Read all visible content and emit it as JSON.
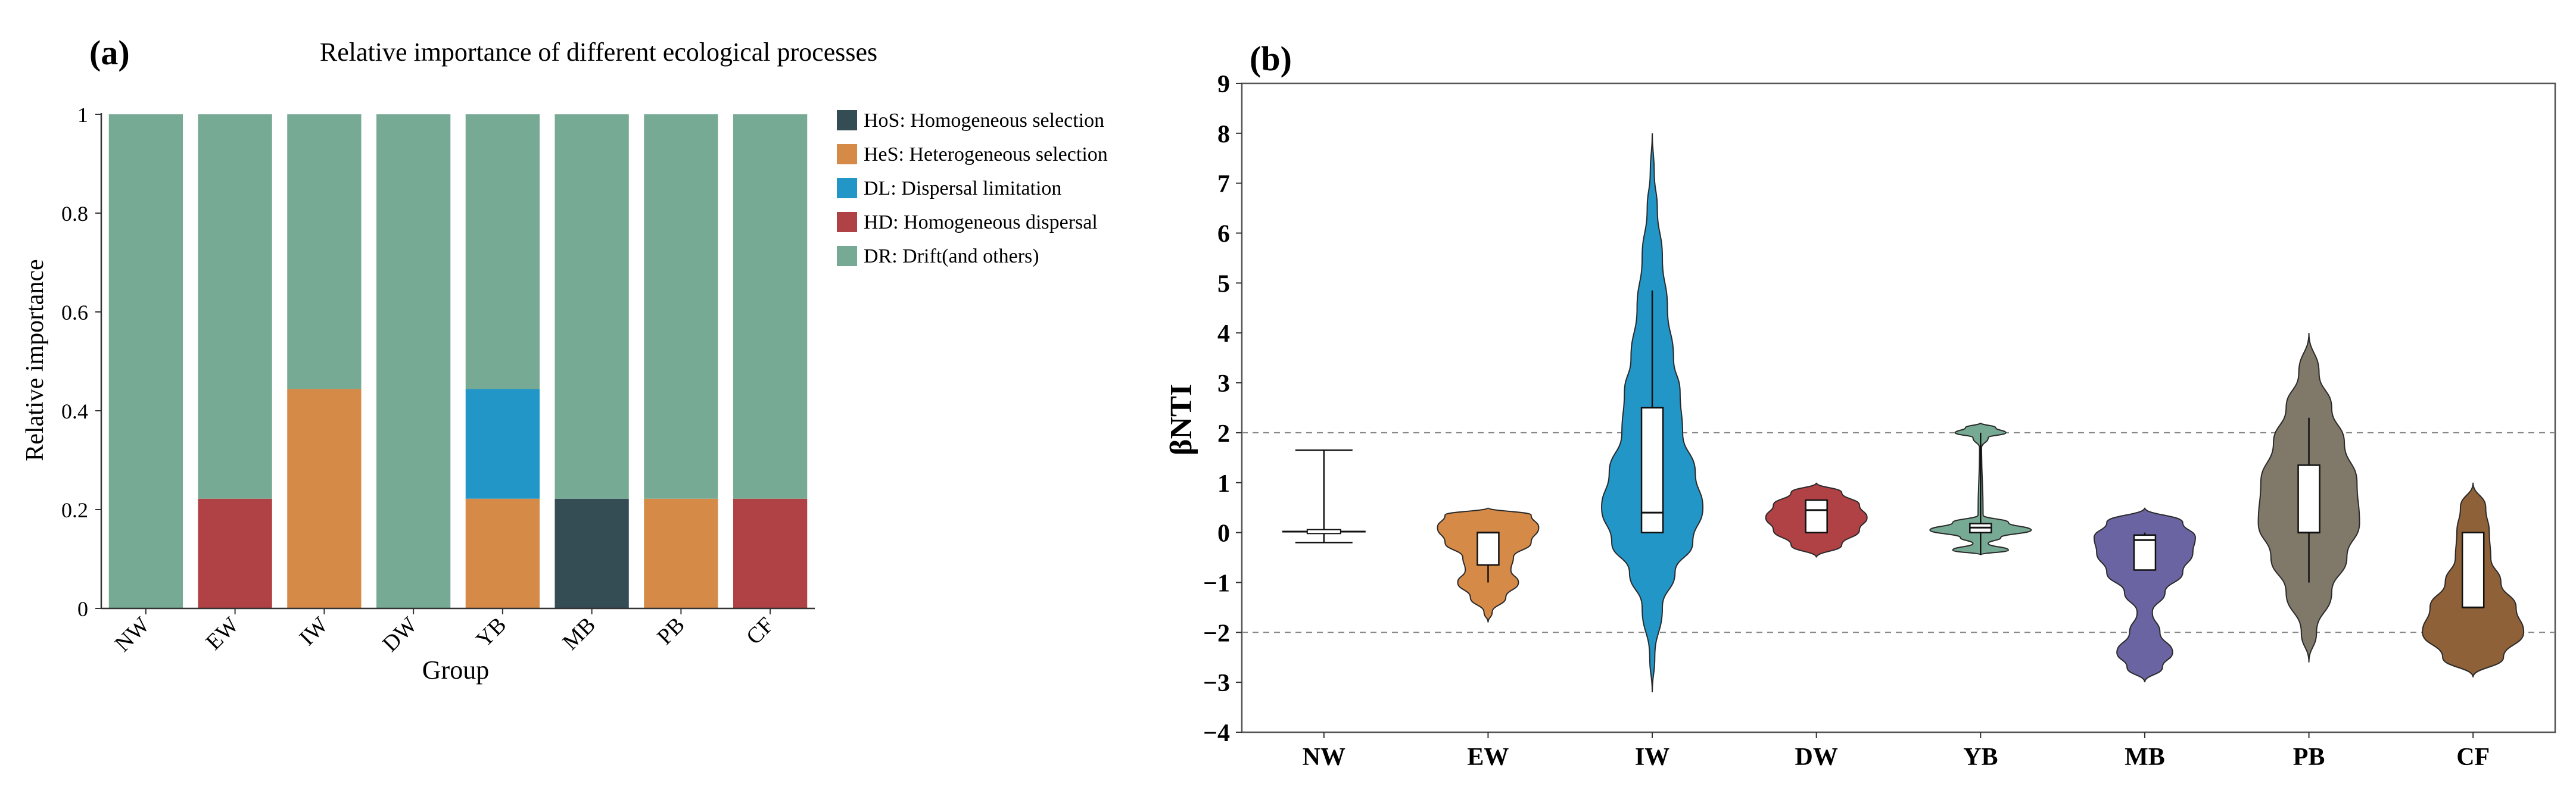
{
  "panel_a": {
    "label": "(a)",
    "chart_data": {
      "type": "bar",
      "stacked": true,
      "title": "Relative importance of different ecological processes",
      "xlabel": "Group",
      "ylabel": "Relative importance",
      "ylim": [
        0,
        1
      ],
      "yticks": [
        0,
        0.2,
        0.4,
        0.6,
        0.8,
        1
      ],
      "ytick_labels": [
        "0",
        "0.2",
        "0.4",
        "0.6",
        "0.8",
        "1"
      ],
      "categories": [
        "NW",
        "EW",
        "IW",
        "DW",
        "YB",
        "MB",
        "PB",
        "CF"
      ],
      "legend_position": "right",
      "series": [
        {
          "key": "HoS",
          "name": "HoS: Homogeneous selection",
          "color": "#344d55",
          "values": [
            0,
            0,
            0,
            0,
            0,
            0.222,
            0,
            0
          ]
        },
        {
          "key": "HeS",
          "name": "HeS: Heterogeneous selection",
          "color": "#d68a48",
          "values": [
            0,
            0,
            0.444,
            0,
            0.222,
            0,
            0.222,
            0
          ]
        },
        {
          "key": "DL",
          "name": "DL: Dispersal limitation",
          "color": "#2396c8",
          "values": [
            0,
            0,
            0,
            0,
            0.222,
            0,
            0,
            0
          ]
        },
        {
          "key": "HD",
          "name": "HD: Homogeneous dispersal",
          "color": "#b04145",
          "values": [
            0,
            0.222,
            0,
            0,
            0,
            0,
            0,
            0.222
          ]
        },
        {
          "key": "DR",
          "name": "DR: Drift(and others)",
          "color": "#77aa94",
          "values": [
            1,
            0.778,
            0.556,
            1,
            0.556,
            0.778,
            0.778,
            0.778
          ]
        }
      ],
      "stack_order": [
        "HoS",
        "HD",
        "HeS",
        "DL",
        "DR"
      ]
    }
  },
  "panel_b": {
    "label": "(b)",
    "chart_data": {
      "type": "violin",
      "title": "",
      "xlabel": "",
      "ylabel": "βNTI",
      "ylim": [
        -4,
        9
      ],
      "yticks": [
        -4,
        -3,
        -2,
        -1,
        0,
        1,
        2,
        3,
        4,
        5,
        6,
        7,
        8,
        9
      ],
      "ytick_labels": [
        "−4",
        "−3",
        "−2",
        "−1",
        "0",
        "1",
        "2",
        "3",
        "4",
        "5",
        "6",
        "7",
        "8",
        "9"
      ],
      "reference_lines": [
        2,
        -2
      ],
      "categories": [
        "NW",
        "EW",
        "IW",
        "DW",
        "YB",
        "MB",
        "PB",
        "CF"
      ],
      "groups": [
        {
          "name": "NW",
          "color": "#ffffff",
          "kind": "errorbar",
          "min": -0.2,
          "max": 1.65,
          "median": 0.02,
          "box": [
            -0.02,
            0.06
          ],
          "whisker": [
            -0.2,
            1.65
          ]
        },
        {
          "name": "EW",
          "color": "#d68a48",
          "kind": "violin",
          "min": -1.8,
          "max": 0.5,
          "box": [
            -0.65,
            0.0
          ],
          "median": 0.0,
          "whisker": [
            -1.0,
            0.0
          ],
          "density": [
            [
              -1.8,
              0.0
            ],
            [
              -1.6,
              0.08
            ],
            [
              -1.3,
              0.35
            ],
            [
              -1.0,
              0.6
            ],
            [
              -0.75,
              0.45
            ],
            [
              -0.5,
              0.5
            ],
            [
              -0.2,
              0.85
            ],
            [
              0.1,
              1.0
            ],
            [
              0.35,
              0.85
            ],
            [
              0.5,
              0.0
            ]
          ]
        },
        {
          "name": "IW",
          "color": "#2396c8",
          "kind": "violin",
          "min": -3.2,
          "max": 8.0,
          "box": [
            0.0,
            2.5
          ],
          "median": 0.4,
          "whisker": [
            0.0,
            4.85
          ],
          "density": [
            [
              -3.2,
              0.0
            ],
            [
              -2.5,
              0.05
            ],
            [
              -1.5,
              0.2
            ],
            [
              -0.8,
              0.45
            ],
            [
              -0.2,
              0.8
            ],
            [
              0.5,
              1.0
            ],
            [
              1.2,
              0.85
            ],
            [
              2.0,
              0.6
            ],
            [
              2.8,
              0.55
            ],
            [
              3.5,
              0.42
            ],
            [
              4.5,
              0.3
            ],
            [
              5.5,
              0.2
            ],
            [
              6.5,
              0.1
            ],
            [
              7.2,
              0.04
            ],
            [
              8.0,
              0.0
            ]
          ]
        },
        {
          "name": "DW",
          "color": "#b04145",
          "kind": "violin",
          "min": -0.5,
          "max": 1.0,
          "box": [
            0.0,
            0.65
          ],
          "median": 0.45,
          "whisker": [
            0.0,
            0.65
          ],
          "density": [
            [
              -0.5,
              0.0
            ],
            [
              -0.25,
              0.5
            ],
            [
              0.05,
              0.85
            ],
            [
              0.3,
              1.0
            ],
            [
              0.55,
              0.85
            ],
            [
              0.8,
              0.5
            ],
            [
              1.0,
              0.0
            ]
          ]
        },
        {
          "name": "YB",
          "color": "#77aa94",
          "kind": "violin",
          "min": -0.45,
          "max": 2.2,
          "box": [
            0.0,
            0.18
          ],
          "median": 0.1,
          "whisker": [
            -0.45,
            2.0
          ],
          "density": [
            [
              -0.45,
              0.0
            ],
            [
              -0.35,
              0.55
            ],
            [
              -0.22,
              0.15
            ],
            [
              -0.1,
              0.4
            ],
            [
              0.05,
              1.0
            ],
            [
              0.2,
              0.55
            ],
            [
              0.35,
              0.05
            ],
            [
              1.7,
              0.02
            ],
            [
              1.9,
              0.15
            ],
            [
              2.0,
              0.5
            ],
            [
              2.1,
              0.3
            ],
            [
              2.2,
              0.0
            ]
          ]
        },
        {
          "name": "MB",
          "color": "#6a64a2",
          "kind": "violin",
          "min": -3.0,
          "max": 0.5,
          "box": [
            -0.75,
            -0.05
          ],
          "median": -0.15,
          "whisker": [
            -0.75,
            0.0
          ],
          "density": [
            [
              -3.0,
              0.0
            ],
            [
              -2.7,
              0.35
            ],
            [
              -2.4,
              0.55
            ],
            [
              -2.0,
              0.3
            ],
            [
              -1.6,
              0.15
            ],
            [
              -1.2,
              0.4
            ],
            [
              -0.8,
              0.75
            ],
            [
              -0.4,
              0.95
            ],
            [
              -0.1,
              1.0
            ],
            [
              0.2,
              0.75
            ],
            [
              0.5,
              0.0
            ]
          ]
        },
        {
          "name": "PB",
          "color": "#807868",
          "kind": "violin",
          "min": -2.6,
          "max": 4.0,
          "box": [
            0.0,
            1.35
          ],
          "median": 0.0,
          "whisker": [
            -1.0,
            2.3
          ],
          "density": [
            [
              -2.6,
              0.0
            ],
            [
              -2.0,
              0.15
            ],
            [
              -1.2,
              0.45
            ],
            [
              -0.5,
              0.75
            ],
            [
              0.2,
              1.0
            ],
            [
              1.0,
              0.95
            ],
            [
              1.8,
              0.7
            ],
            [
              2.5,
              0.45
            ],
            [
              3.2,
              0.2
            ],
            [
              4.0,
              0.0
            ]
          ]
        },
        {
          "name": "CF",
          "color": "#8f6138",
          "kind": "violin",
          "min": -2.9,
          "max": 1.0,
          "box": [
            -1.5,
            0.0
          ],
          "median": -1.5,
          "whisker": [
            -1.5,
            0.0
          ],
          "density": [
            [
              -2.9,
              0.0
            ],
            [
              -2.5,
              0.6
            ],
            [
              -2.0,
              1.0
            ],
            [
              -1.5,
              0.85
            ],
            [
              -1.0,
              0.55
            ],
            [
              -0.5,
              0.35
            ],
            [
              0.0,
              0.32
            ],
            [
              0.5,
              0.25
            ],
            [
              1.0,
              0.0
            ]
          ]
        }
      ]
    }
  }
}
